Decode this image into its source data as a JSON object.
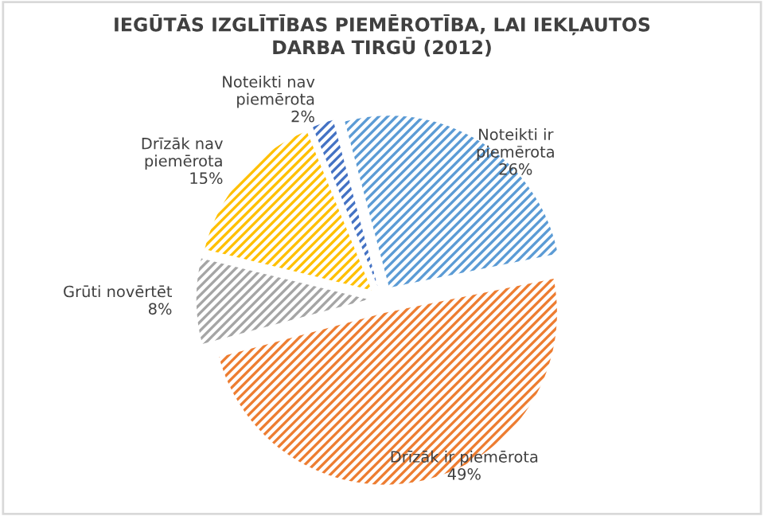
{
  "chart_data": {
    "type": "pie",
    "title": "IEGŪTĀS IZGLĪTĪBAS PIEMĒROTĪBA, LAI IEKĻAUTOS\nDARBA TIRGŪ (2012)",
    "categories": [
      "Noteikti ir\npiemērota",
      "Drīzāk ir piemērota",
      "Grūti novērtēt",
      "Drīzāk nav\npiemērota",
      "Noteikti nav\npiemērota"
    ],
    "values": [
      26,
      49,
      8,
      15,
      2
    ],
    "value_labels": [
      "26%",
      "49%",
      "8%",
      "15%",
      "2%"
    ],
    "colors": [
      "#5b9bd5",
      "#ed7d31",
      "#a5a5a5",
      "#ffc000",
      "#4472c4"
    ],
    "legend": false
  }
}
